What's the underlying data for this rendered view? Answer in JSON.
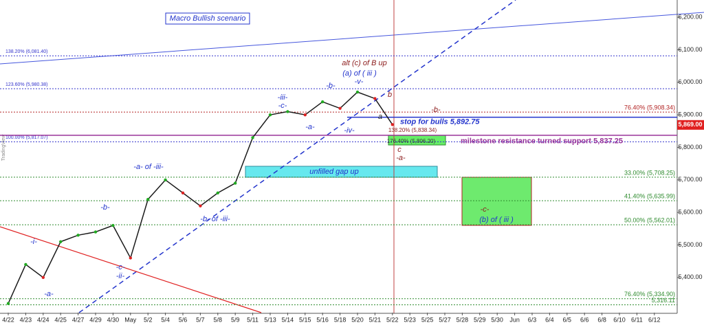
{
  "chart_data": {
    "type": "line",
    "title": "Macro Bullish scenario",
    "categories": [
      "4/22",
      "4/23",
      "4/24",
      "4/25",
      "4/27",
      "4/29",
      "4/30",
      "May",
      "5/2",
      "5/4",
      "5/6",
      "5/7",
      "5/8",
      "5/9",
      "5/11",
      "5/13",
      "5/14",
      "5/15",
      "5/16",
      "5/18",
      "5/20",
      "5/21",
      "5/22",
      "5/23",
      "5/25",
      "5/27",
      "5/28",
      "5/29",
      "5/30",
      "Jun",
      "6/3",
      "6/4",
      "6/5",
      "6/6",
      "6/8",
      "6/10",
      "6/11",
      "6/12"
    ],
    "values": [
      5320,
      5440,
      5400,
      5510,
      5530,
      5540,
      5560,
      5460,
      5640,
      5700,
      5660,
      5620,
      5660,
      5690,
      5830,
      5900,
      5910,
      5900,
      5940,
      5920,
      5970,
      5950,
      5870,
      null,
      null,
      null,
      null,
      null,
      null,
      null,
      null,
      null,
      null,
      null,
      null,
      null,
      null,
      null
    ],
    "color": "#1a1a1a",
    "ylim": [
      5292,
      6253
    ],
    "yticks": [
      {
        "value": 5400,
        "label": "5,400.00"
      },
      {
        "value": 5500,
        "label": "5,500.00"
      },
      {
        "value": 5600,
        "label": "5,600.00"
      },
      {
        "value": 5700,
        "label": "5,700.00"
      },
      {
        "value": 5800,
        "label": "5,800.00"
      },
      {
        "value": 5900,
        "label": "5,900.00"
      },
      {
        "value": 6000,
        "label": "6,000.00"
      },
      {
        "value": 6100,
        "label": "6,100.00"
      },
      {
        "value": 6200,
        "label": "6,200.00"
      }
    ],
    "last_price": {
      "value": 5869,
      "label": "5,869.00"
    },
    "levels": [
      {
        "value": 6081.4,
        "label": "138.20% (6,081.40)",
        "color": "#3333cc",
        "side": "left"
      },
      {
        "value": 5980.38,
        "label": "123.60% (5,980.38)",
        "color": "#3333cc",
        "side": "left"
      },
      {
        "value": 5817.07,
        "label": "100.00% (5,817.07)",
        "color": "#3333cc",
        "side": "left"
      },
      {
        "value": 5908.34,
        "label": "76.40% (5,908.34)",
        "color": "#b22222",
        "side": "right"
      },
      {
        "value": 5708.25,
        "label": "33.00% (5,708.25)",
        "color": "#2e8b2e",
        "side": "right"
      },
      {
        "value": 5635.99,
        "label": "41.40% (5,635.99)",
        "color": "#2e8b2e",
        "side": "right"
      },
      {
        "value": 5562.01,
        "label": "50.00% (5,562.01)",
        "color": "#2e8b2e",
        "side": "right"
      },
      {
        "value": 5334.9,
        "label": "76.40% (5,334.90)",
        "color": "#2e8b2e",
        "side": "right"
      },
      {
        "value": 5316.11,
        "label": "5,316.11",
        "color": "#2e8b2e",
        "side": "right"
      }
    ],
    "stop_level": {
      "value": 5892.75,
      "label": "stop for bulls 5,892.75"
    },
    "support_level": {
      "value": 5837.25,
      "label": "milestone resistance turned support 5,837.25"
    },
    "annotations": [
      "alt (c) of B up",
      "(a) of ( iii )",
      "-v-",
      "-b-",
      "b",
      "-iii-",
      "-c-",
      "a",
      "-a-",
      "-iv-",
      "-b-",
      "138.20% (5,838.34)",
      "c",
      "176.40% (5,806.20)",
      "-a-",
      "-a- of -iii-",
      "unfilled gap up",
      "-b-",
      "-b- of -iii-",
      "-c-",
      "(b) of ( iii )",
      "-i-",
      "-c-",
      "-ii-",
      "-a-"
    ],
    "watermark": "TradingView"
  }
}
